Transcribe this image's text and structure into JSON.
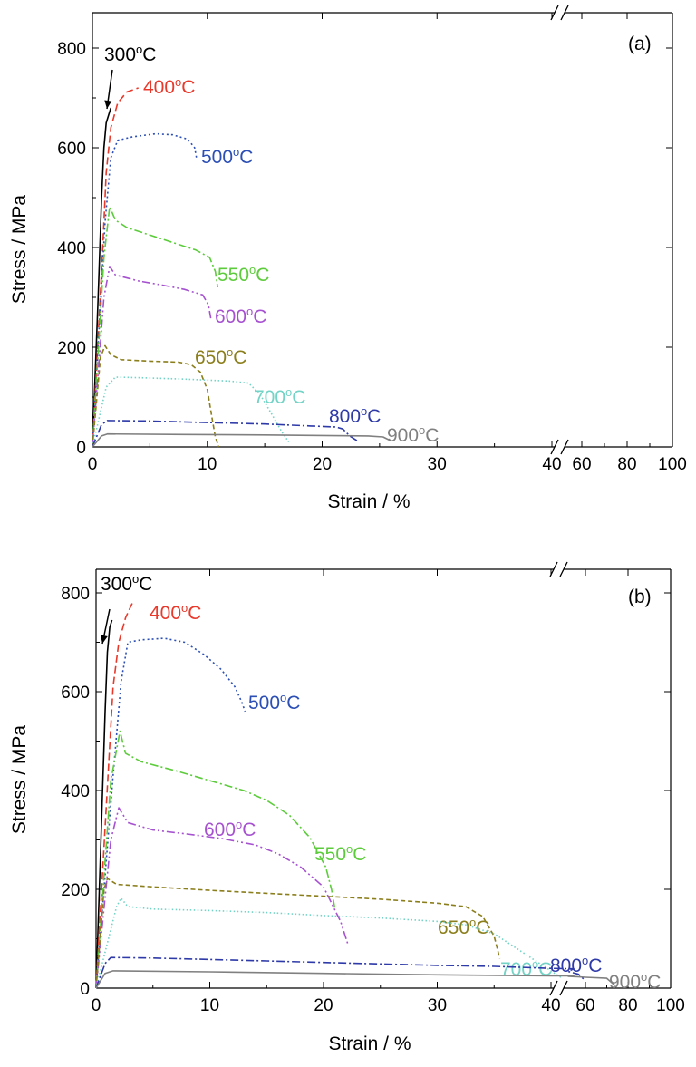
{
  "chart_data": [
    {
      "type": "line",
      "panel_label": "(a)",
      "xlabel": "Strain / %",
      "ylabel": "Stress / MPa",
      "xlim": [
        0,
        100
      ],
      "ylim": [
        0,
        850
      ],
      "x_axis_broken": true,
      "x_break_at": 42,
      "x_ticks": [
        "0",
        "10",
        "20",
        "30",
        "40",
        "60",
        "80",
        "100"
      ],
      "y_ticks": [
        "0",
        "200",
        "400",
        "600",
        "800"
      ],
      "series": [
        {
          "name": "300°C",
          "color": "#000000",
          "dash": "solid",
          "label": {
            "base": "300",
            "unit": "C"
          },
          "points": [
            [
              0,
              0
            ],
            [
              0.5,
              300
            ],
            [
              0.8,
              500
            ],
            [
              1.0,
              600
            ],
            [
              1.2,
              650
            ],
            [
              1.6,
              680
            ]
          ]
        },
        {
          "name": "400°C",
          "color": "#e8392b",
          "dash": "dashed",
          "label": {
            "base": "400",
            "unit": "C"
          },
          "points": [
            [
              0,
              0
            ],
            [
              0.9,
              400
            ],
            [
              1.2,
              550
            ],
            [
              1.6,
              640
            ],
            [
              2.2,
              690
            ],
            [
              3.0,
              712
            ],
            [
              4.0,
              720
            ]
          ]
        },
        {
          "name": "500°C",
          "color": "#2c4fb5",
          "dash": "dotted",
          "label": {
            "base": "500",
            "unit": "C"
          },
          "points": [
            [
              0,
              0
            ],
            [
              1.1,
              450
            ],
            [
              1.6,
              580
            ],
            [
              2.2,
              615
            ],
            [
              3.5,
              622
            ],
            [
              5.5,
              628
            ],
            [
              7.0,
              626
            ],
            [
              8.3,
              617
            ],
            [
              8.9,
              600
            ],
            [
              9.1,
              575
            ]
          ]
        },
        {
          "name": "550°C",
          "color": "#5dcc3c",
          "dash": "dashdot",
          "label": {
            "base": "550",
            "unit": "C"
          },
          "points": [
            [
              0,
              0
            ],
            [
              1.0,
              380
            ],
            [
              1.5,
              482
            ],
            [
              2.0,
              455
            ],
            [
              3.0,
              440
            ],
            [
              5.0,
              425
            ],
            [
              7.0,
              410
            ],
            [
              9.0,
              395
            ],
            [
              10.2,
              380
            ],
            [
              10.7,
              352
            ],
            [
              10.9,
              320
            ]
          ]
        },
        {
          "name": "600°C",
          "color": "#a652d0",
          "dash": "dashdotdot",
          "label": {
            "base": "600",
            "unit": "C"
          },
          "points": [
            [
              0,
              0
            ],
            [
              1.0,
              300
            ],
            [
              1.5,
              362
            ],
            [
              2.0,
              345
            ],
            [
              4.0,
              333
            ],
            [
              6.0,
              325
            ],
            [
              8.0,
              316
            ],
            [
              9.6,
              305
            ],
            [
              10.1,
              285
            ],
            [
              10.3,
              258
            ]
          ]
        },
        {
          "name": "650°C",
          "color": "#8b7e1c",
          "dash": "shortdash",
          "label": {
            "base": "650",
            "unit": "C"
          },
          "points": [
            [
              0,
              0
            ],
            [
              0.7,
              180
            ],
            [
              1.1,
              203
            ],
            [
              1.6,
              185
            ],
            [
              2.5,
              175
            ],
            [
              5.0,
              172
            ],
            [
              7.5,
              170
            ],
            [
              8.6,
              165
            ],
            [
              9.4,
              150
            ],
            [
              10.0,
              115
            ],
            [
              10.4,
              60
            ],
            [
              10.7,
              20
            ],
            [
              11.0,
              0
            ]
          ]
        },
        {
          "name": "700°C",
          "color": "#72d3c6",
          "dash": "finedot",
          "label": {
            "base": "700",
            "unit": "C"
          },
          "points": [
            [
              0,
              0
            ],
            [
              1.2,
              120
            ],
            [
              2.0,
              140
            ],
            [
              4.0,
              139
            ],
            [
              8.0,
              136
            ],
            [
              12.0,
              132
            ],
            [
              13.6,
              128
            ],
            [
              14.6,
              105
            ],
            [
              15.5,
              70
            ],
            [
              16.5,
              30
            ],
            [
              17.1,
              10
            ]
          ]
        },
        {
          "name": "800°C",
          "color": "#2e3aa8",
          "dash": "dashdot",
          "label": {
            "base": "800",
            "unit": "C"
          },
          "points": [
            [
              0,
              0
            ],
            [
              0.8,
              45
            ],
            [
              1.3,
              53
            ],
            [
              5.0,
              52
            ],
            [
              10.0,
              49
            ],
            [
              15.0,
              46
            ],
            [
              19.0,
              42
            ],
            [
              21.2,
              40
            ],
            [
              21.8,
              36
            ],
            [
              22.4,
              22
            ],
            [
              23.2,
              10
            ]
          ]
        },
        {
          "name": "900°C",
          "color": "#808080",
          "dash": "solid",
          "label": {
            "base": "900",
            "unit": "C"
          },
          "points": [
            [
              0,
              0
            ],
            [
              0.8,
              22
            ],
            [
              1.3,
              26
            ],
            [
              8.0,
              25
            ],
            [
              15.0,
              24
            ],
            [
              20.0,
              23
            ],
            [
              24.0,
              22
            ],
            [
              25.3,
              20
            ],
            [
              26.0,
              12
            ]
          ]
        }
      ]
    },
    {
      "type": "line",
      "panel_label": "(b)",
      "xlabel": "Strain / %",
      "ylabel": "Stress / MPa",
      "xlim": [
        0,
        100
      ],
      "ylim": [
        0,
        850
      ],
      "x_axis_broken": true,
      "x_break_at": 42,
      "x_ticks": [
        "0",
        "10",
        "20",
        "30",
        "40",
        "60",
        "80",
        "100"
      ],
      "y_ticks": [
        "0",
        "200",
        "400",
        "600",
        "800"
      ],
      "series": [
        {
          "name": "300°C",
          "color": "#000000",
          "dash": "solid",
          "label": {
            "base": "300",
            "unit": "C"
          },
          "points": [
            [
              0,
              0
            ],
            [
              0.5,
              350
            ],
            [
              0.8,
              560
            ],
            [
              1.0,
              680
            ],
            [
              1.2,
              730
            ],
            [
              1.4,
              745
            ]
          ]
        },
        {
          "name": "400°C",
          "color": "#e8392b",
          "dash": "dashed",
          "label": {
            "base": "400",
            "unit": "C"
          },
          "points": [
            [
              0,
              0
            ],
            [
              1.1,
              450
            ],
            [
              1.5,
              610
            ],
            [
              2.0,
              700
            ],
            [
              2.6,
              750
            ],
            [
              3.2,
              780
            ]
          ]
        },
        {
          "name": "500°C",
          "color": "#2c4fb5",
          "dash": "dotted",
          "label": {
            "base": "500",
            "unit": "C"
          },
          "points": [
            [
              0,
              0
            ],
            [
              1.5,
              430
            ],
            [
              2.2,
              620
            ],
            [
              2.8,
              700
            ],
            [
              4.0,
              705
            ],
            [
              6.0,
              708
            ],
            [
              7.8,
              700
            ],
            [
              9.5,
              675
            ],
            [
              11.0,
              645
            ],
            [
              12.2,
              610
            ],
            [
              12.8,
              580
            ],
            [
              13.1,
              560
            ]
          ]
        },
        {
          "name": "550°C",
          "color": "#5dcc3c",
          "dash": "dashdot",
          "label": {
            "base": "550",
            "unit": "C"
          },
          "points": [
            [
              0,
              0
            ],
            [
              1.3,
              420
            ],
            [
              2.1,
              520
            ],
            [
              2.6,
              475
            ],
            [
              4.0,
              458
            ],
            [
              7.0,
              440
            ],
            [
              10.0,
              420
            ],
            [
              13.0,
              400
            ],
            [
              15.0,
              380
            ],
            [
              17.0,
              350
            ],
            [
              18.8,
              305
            ],
            [
              20.2,
              245
            ],
            [
              20.7,
              200
            ],
            [
              21.0,
              160
            ]
          ]
        },
        {
          "name": "600°C",
          "color": "#a652d0",
          "dash": "dashdotdot",
          "label": {
            "base": "600",
            "unit": "C"
          },
          "points": [
            [
              0,
              0
            ],
            [
              1.3,
              300
            ],
            [
              2.0,
              365
            ],
            [
              2.8,
              335
            ],
            [
              5.0,
              320
            ],
            [
              8.0,
              312
            ],
            [
              11.0,
              303
            ],
            [
              14.0,
              290
            ],
            [
              16.0,
              272
            ],
            [
              18.0,
              245
            ],
            [
              20.0,
              205
            ],
            [
              21.5,
              135
            ],
            [
              22.2,
              85
            ]
          ]
        },
        {
          "name": "650°C",
          "color": "#8b7e1c",
          "dash": "shortdash",
          "label": {
            "base": "650",
            "unit": "C"
          },
          "points": [
            [
              0,
              0
            ],
            [
              0.7,
              200
            ],
            [
              1.0,
              222
            ],
            [
              1.8,
              210
            ],
            [
              5.0,
              205
            ],
            [
              10.0,
              198
            ],
            [
              15.0,
              192
            ],
            [
              20.0,
              186
            ],
            [
              25.0,
              180
            ],
            [
              30.0,
              172
            ],
            [
              32.5,
              165
            ],
            [
              34.0,
              145
            ],
            [
              35.0,
              105
            ],
            [
              35.5,
              60
            ]
          ]
        },
        {
          "name": "700°C",
          "color": "#72d3c6",
          "dash": "finedot",
          "label": {
            "base": "700",
            "unit": "C"
          },
          "points": [
            [
              0,
              0
            ],
            [
              1.8,
              165
            ],
            [
              2.2,
              182
            ],
            [
              2.8,
              165
            ],
            [
              5.0,
              160
            ],
            [
              10.0,
              157
            ],
            [
              15.0,
              153
            ],
            [
              20.0,
              147
            ],
            [
              25.0,
              142
            ],
            [
              30.0,
              135
            ],
            [
              32.5,
              128
            ],
            [
              35.0,
              110
            ],
            [
              37.0,
              80
            ],
            [
              39.0,
              50
            ],
            [
              41.0,
              20
            ]
          ]
        },
        {
          "name": "800°C",
          "color": "#2e3aa8",
          "dash": "dashdot",
          "label": {
            "base": "800",
            "unit": "C"
          },
          "points": [
            [
              0,
              0
            ],
            [
              0.8,
              50
            ],
            [
              1.3,
              62
            ],
            [
              5.0,
              61
            ],
            [
              10.0,
              58
            ],
            [
              15.0,
              55
            ],
            [
              20.0,
              52
            ],
            [
              25.0,
              49
            ],
            [
              30.0,
              46
            ],
            [
              35.0,
              44
            ],
            [
              40.0,
              40
            ],
            [
              42.0,
              39
            ],
            [
              50.0,
              34
            ],
            [
              56.0,
              28
            ],
            [
              60.0,
              15
            ]
          ]
        },
        {
          "name": "900°C",
          "color": "#808080",
          "dash": "solid",
          "label": {
            "base": "900",
            "unit": "C"
          },
          "points": [
            [
              0,
              0
            ],
            [
              0.8,
              30
            ],
            [
              1.5,
              35
            ],
            [
              10.0,
              33
            ],
            [
              20.0,
              30
            ],
            [
              30.0,
              27
            ],
            [
              40.0,
              25
            ],
            [
              42.0,
              25
            ],
            [
              50.0,
              24
            ],
            [
              60.0,
              22
            ],
            [
              70.0,
              20
            ],
            [
              74.0,
              5
            ]
          ]
        }
      ]
    }
  ]
}
